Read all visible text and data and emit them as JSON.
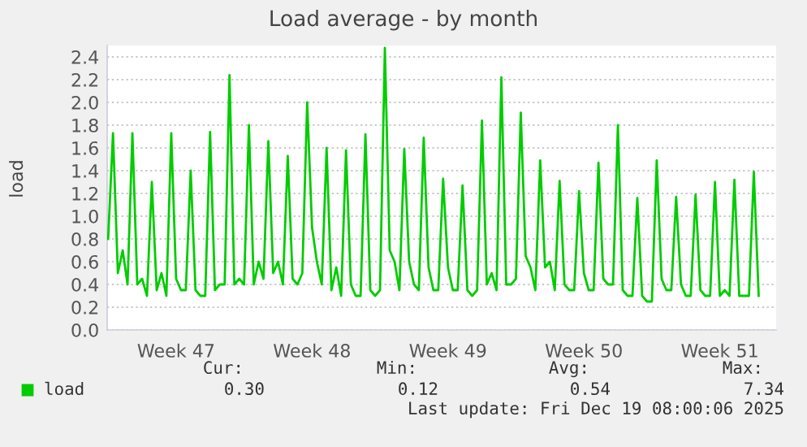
{
  "chart_data": {
    "type": "line",
    "title": "Load average - by month",
    "ylabel": "load",
    "categories": [
      null,
      null,
      null,
      null,
      null,
      null,
      null,
      null,
      null,
      null,
      null,
      null,
      null,
      null,
      "Week 47",
      null,
      null,
      null,
      null,
      null,
      null,
      null,
      null,
      null,
      null,
      null,
      null,
      null,
      null,
      null,
      null,
      null,
      null,
      null,
      null,
      null,
      null,
      null,
      null,
      null,
      null,
      null,
      "Week 48",
      null,
      null,
      null,
      null,
      null,
      null,
      null,
      null,
      null,
      null,
      null,
      null,
      null,
      null,
      null,
      null,
      null,
      null,
      null,
      null,
      null,
      null,
      null,
      null,
      null,
      null,
      null,
      "Week 49",
      null,
      null,
      null,
      null,
      null,
      null,
      null,
      null,
      null,
      null,
      null,
      null,
      null,
      null,
      null,
      null,
      null,
      null,
      null,
      null,
      null,
      null,
      null,
      null,
      null,
      null,
      null,
      "Week 50",
      null,
      null,
      null,
      null,
      null,
      null,
      null,
      null,
      null,
      null,
      null,
      null,
      null,
      null,
      null,
      null,
      null,
      null,
      null,
      null,
      null,
      null,
      null,
      null,
      null,
      null,
      null,
      "Week 51",
      null,
      null,
      null,
      null,
      null,
      null,
      null,
      null,
      null,
      null,
      null
    ],
    "series": [
      {
        "name": "load",
        "color": "#00cc00",
        "values": [
          0.8,
          1.73,
          0.5,
          0.7,
          0.4,
          1.73,
          0.4,
          0.45,
          0.3,
          1.3,
          0.35,
          0.5,
          0.3,
          1.73,
          0.45,
          0.35,
          0.35,
          1.4,
          0.35,
          0.3,
          0.3,
          1.74,
          0.35,
          0.4,
          0.4,
          2.24,
          0.4,
          0.45,
          0.4,
          1.8,
          0.4,
          0.6,
          0.45,
          1.66,
          0.5,
          0.6,
          0.4,
          1.53,
          0.45,
          0.4,
          0.5,
          2.0,
          0.9,
          0.6,
          0.4,
          1.6,
          0.35,
          0.55,
          0.3,
          1.58,
          0.4,
          0.3,
          0.3,
          1.72,
          0.35,
          0.3,
          0.35,
          2.48,
          0.7,
          0.6,
          0.35,
          1.59,
          0.6,
          0.4,
          0.35,
          1.69,
          0.55,
          0.35,
          0.35,
          1.33,
          0.55,
          0.35,
          0.35,
          1.27,
          0.35,
          0.3,
          0.35,
          1.84,
          0.4,
          0.5,
          0.35,
          2.22,
          0.4,
          0.4,
          0.45,
          1.91,
          0.65,
          0.55,
          0.35,
          1.49,
          0.55,
          0.6,
          0.35,
          1.31,
          0.4,
          0.35,
          0.35,
          1.22,
          0.5,
          0.35,
          0.35,
          1.47,
          0.45,
          0.4,
          0.4,
          1.8,
          0.35,
          0.3,
          0.3,
          1.16,
          0.3,
          0.25,
          0.25,
          1.49,
          0.45,
          0.35,
          0.35,
          1.17,
          0.4,
          0.3,
          0.3,
          1.19,
          0.35,
          0.3,
          0.3,
          1.3,
          0.3,
          0.35,
          0.3,
          1.32,
          0.3,
          0.3,
          0.3,
          1.39,
          0.3,
          null,
          null,
          null
        ]
      }
    ],
    "ylim": [
      0,
      2.5
    ],
    "yticks": [
      {
        "value": 0,
        "label": "0.0"
      },
      0.2,
      0.4,
      0.6,
      0.8,
      {
        "value": 1,
        "label": "1.0"
      },
      1.2,
      1.4,
      1.6,
      1.8,
      {
        "value": 2,
        "label": "2.0"
      },
      2.2,
      2.4
    ],
    "grid": "y",
    "legend": "bottom left",
    "line_style": "solid",
    "marker": "none",
    "annotations": [
      "Cur:",
      "Min:",
      "Avg:",
      "Max:",
      "0.30",
      "0.12",
      "0.54",
      "7.34",
      "Last update: Fri Dec 19 08:00:06 2025"
    ]
  }
}
